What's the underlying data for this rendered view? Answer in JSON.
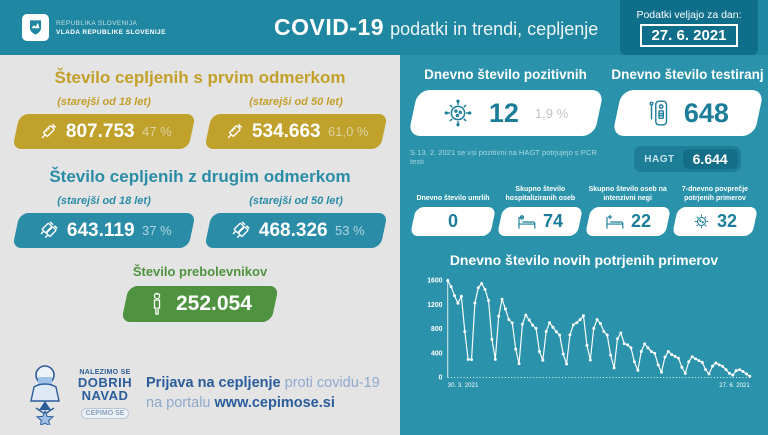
{
  "header": {
    "logo_line1": "REPUBLIKA SLOVENIJA",
    "logo_line2": "VLADA REPUBLIKE SLOVENIJE",
    "title_bold": "COVID-19",
    "title_rest": "podatki in trendi, cepljenje",
    "date_label": "Podatki veljajo za dan:",
    "date_value": "27. 6. 2021"
  },
  "left": {
    "first_dose": {
      "title": "Število cepljenih s prvim odmerkom",
      "groups": [
        {
          "label": "(starejši od 18 let)",
          "value": "807.753",
          "percent": "47 %"
        },
        {
          "label": "(starejši od 50 let)",
          "value": "534.663",
          "percent": "61,0 %"
        }
      ]
    },
    "second_dose": {
      "title": "Število cepljenih z drugim odmerkom",
      "groups": [
        {
          "label": "(starejši od 18 let)",
          "value": "643.119",
          "percent": "37 %"
        },
        {
          "label": "(starejši od 50 let)",
          "value": "468.326",
          "percent": "53 %"
        }
      ]
    },
    "recovered": {
      "title": "Število prebolevnikov",
      "value": "252.054"
    },
    "campaign": {
      "logo_line1": "NALEZIMO SE",
      "logo_line2": "DOBRIH",
      "logo_line3": "NAVAD",
      "logo_badge": "CEPIMO SE",
      "cta_bold1": "Prijava na cepljenje",
      "cta_rest1": " proti covidu-19",
      "cta_rest2": "na portalu ",
      "cta_bold2": "www.cepimose.si"
    }
  },
  "right": {
    "positive": {
      "title": "Dnevno število pozitivnih",
      "value": "12",
      "percent": "1,9 %",
      "note": "S 13. 2. 2021 se vsi pozitivni na HAGT potrjujejo s PCR testi"
    },
    "tests": {
      "title": "Dnevno število testiranj",
      "value": "648",
      "hagt_label": "HAGT",
      "hagt_value": "6.644"
    },
    "mini_stats": [
      {
        "label": "Dnevno število umrlih",
        "value": "0",
        "icon": "none"
      },
      {
        "label": "Skupno število hospitaliziranih oseb",
        "value": "74",
        "icon": "hospital-bed-icon"
      },
      {
        "label": "Skupno število oseb na intenzivni negi",
        "value": "22",
        "icon": "icu-bed-icon"
      },
      {
        "label": "7-dnevno povprečje potrjenih primerov",
        "value": "32",
        "icon": "virus-icon"
      }
    ]
  },
  "chart_data": {
    "type": "line",
    "title": "Dnevno število novih potrjenih primerov",
    "xlabel": "",
    "ylabel": "",
    "x_start_label": "30. 3. 2021",
    "x_end_label": "27. 6. 2021",
    "ylim": [
      0,
      1600
    ],
    "yticks": [
      0,
      400,
      800,
      1200,
      1600
    ],
    "grid": false,
    "legend": "none",
    "line_color": "#ffffff",
    "values_note": "daily new confirmed cases, estimated from plot",
    "values": [
      1600,
      1495,
      1350,
      1225,
      1340,
      760,
      300,
      295,
      1230,
      1480,
      1550,
      1450,
      1270,
      630,
      300,
      1010,
      1290,
      1130,
      955,
      900,
      470,
      230,
      880,
      1030,
      950,
      865,
      810,
      430,
      285,
      760,
      905,
      830,
      755,
      700,
      390,
      225,
      705,
      870,
      905,
      955,
      1020,
      530,
      290,
      810,
      955,
      890,
      760,
      700,
      370,
      160,
      640,
      735,
      560,
      540,
      490,
      260,
      120,
      430,
      555,
      490,
      430,
      400,
      210,
      90,
      340,
      430,
      380,
      350,
      320,
      170,
      70,
      260,
      345,
      310,
      280,
      250,
      130,
      60,
      190,
      240,
      210,
      185,
      130,
      70,
      40,
      115,
      130,
      100,
      60,
      22
    ]
  },
  "colors": {
    "header_bg": "#1f87a1",
    "right_bg": "#2a92aa",
    "left_bg": "#e4e4e4",
    "gold": "#bfa12b",
    "teal_badge": "#2b8ca7",
    "green": "#4f9340",
    "date_box_bg": "#0f6e8a",
    "value_teal": "#1b7d98",
    "dark_blue": "#2a5c9c"
  }
}
